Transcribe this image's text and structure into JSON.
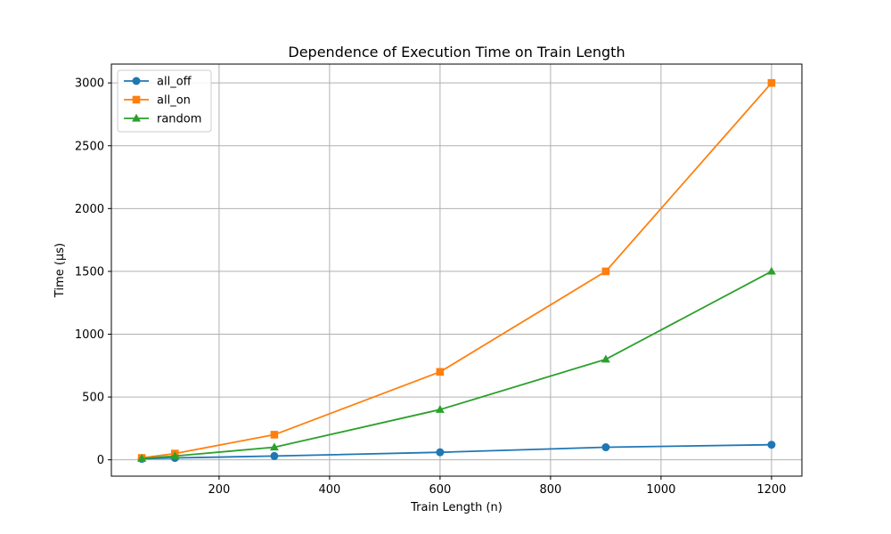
{
  "chart_data": {
    "type": "line",
    "title": "Dependence of Execution Time on Train Length",
    "xlabel": "Train Length (n)",
    "ylabel": "Time (μs)",
    "xlim": [
      5,
      1255
    ],
    "ylim": [
      -130,
      3150
    ],
    "xticks": [
      200,
      400,
      600,
      800,
      1000,
      1200
    ],
    "yticks": [
      0,
      500,
      1000,
      1500,
      2000,
      2500,
      3000
    ],
    "grid": true,
    "legend_position": "top-left",
    "x": [
      60,
      120,
      300,
      600,
      900,
      1200
    ],
    "series": [
      {
        "name": "all_off",
        "color": "#1f77b4",
        "marker": "circle",
        "values": [
          8,
          15,
          30,
          60,
          100,
          120
        ]
      },
      {
        "name": "all_on",
        "color": "#ff7f0e",
        "marker": "square",
        "values": [
          15,
          50,
          200,
          700,
          1500,
          3000
        ]
      },
      {
        "name": "random",
        "color": "#2ca02c",
        "marker": "triangle",
        "values": [
          10,
          30,
          100,
          400,
          800,
          1500
        ]
      }
    ]
  }
}
